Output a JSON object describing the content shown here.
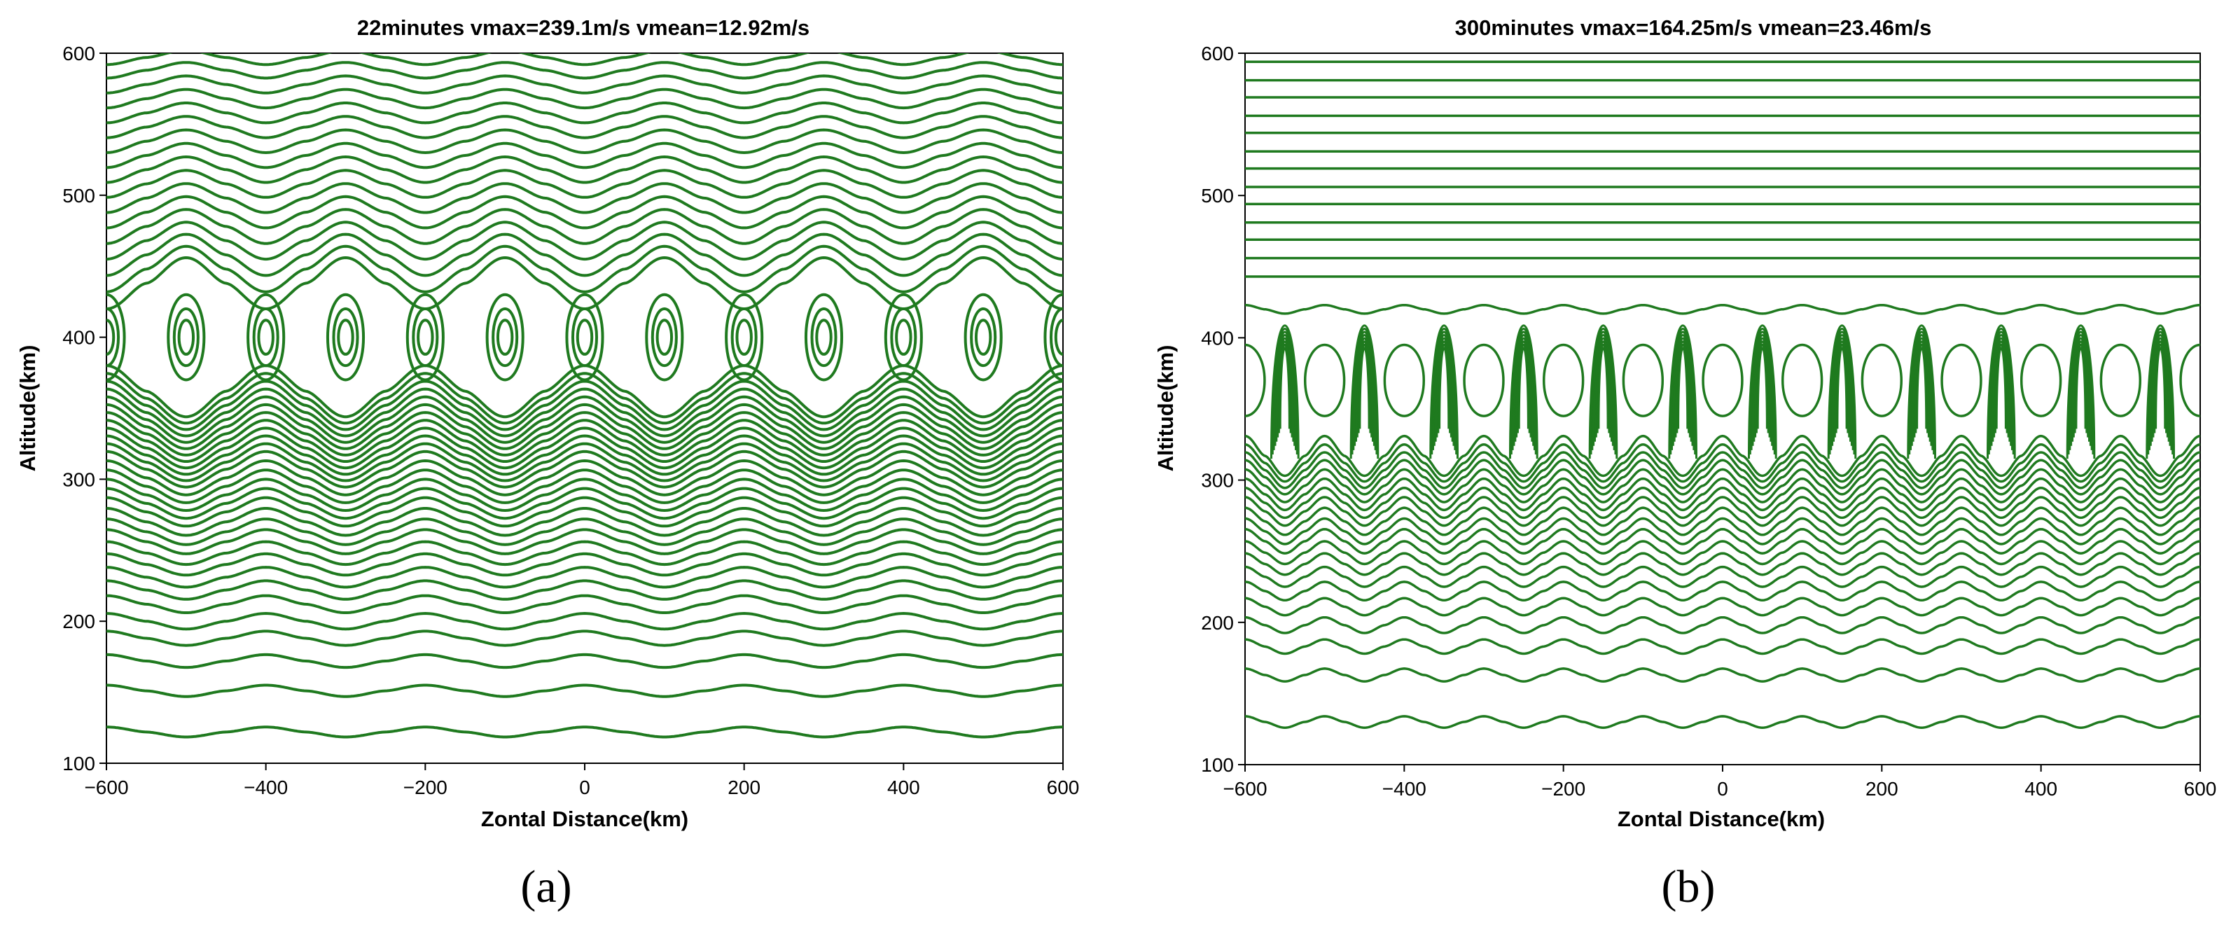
{
  "chart_data": [
    {
      "type": "line",
      "panel_label": "(a)",
      "title": "22minutes  vmax=239.1m/s  vmean=12.92m/s",
      "xlabel": "Zontal Distance(km)",
      "ylabel": "Altitude(km)",
      "xlim": [
        -600,
        600
      ],
      "ylim": [
        100,
        600
      ],
      "x_ticks": [
        -600,
        -400,
        -200,
        0,
        200,
        400,
        600
      ],
      "y_ticks": [
        100,
        200,
        300,
        400,
        500,
        600
      ],
      "x_tick_labels": [
        "−600",
        "−400",
        "−200",
        "0",
        "200",
        "400",
        "600"
      ],
      "y_tick_labels": [
        "100",
        "200",
        "300",
        "400",
        "500",
        "600"
      ],
      "line_color": "#1f7a1f",
      "grid": false,
      "horizontal_wavelength_km": 200,
      "cell_center_altitude_km": 400,
      "cell_center_x_km": [
        -600,
        -500,
        -400,
        -300,
        -200,
        -100,
        0,
        100,
        200,
        300,
        400,
        500,
        600
      ],
      "closed_cell_half_heights_km": [
        30,
        20,
        12
      ],
      "contour_levels_km_below": [
        122,
        151,
        172,
        188,
        200,
        212,
        222,
        231,
        240,
        248,
        256,
        263,
        270,
        277,
        283,
        289,
        295,
        301,
        307,
        312,
        317,
        322,
        327,
        332,
        337,
        342,
        347,
        352,
        357,
        362
      ],
      "contour_levels_km_above": [
        438,
        448,
        458,
        468,
        478,
        488,
        498,
        508,
        518,
        528,
        538,
        548,
        558,
        568,
        578,
        588,
        597
      ],
      "wave_amplitudes_km_below": [
        3.5,
        4,
        4.5,
        5,
        5.5,
        6,
        6.5,
        7,
        7.5,
        8,
        8.5,
        9,
        9.5,
        10,
        10.5,
        11,
        11.5,
        12,
        12.5,
        13,
        13.5,
        14,
        14.5,
        15,
        15.5,
        16,
        16.5,
        17,
        17.5,
        18
      ],
      "wave_amplitudes_km_above": [
        18,
        16,
        14.5,
        13,
        12,
        11,
        10.2,
        9.5,
        9,
        8.5,
        8,
        7.5,
        7,
        6.5,
        6,
        5.5,
        5
      ]
    },
    {
      "type": "line",
      "panel_label": "(b)",
      "title": "300minutes  vmax=164.25m/s  vmean=23.46m/s",
      "xlabel": "Zontal Distance(km)",
      "ylabel": "Altitude(km)",
      "xlim": [
        -600,
        600
      ],
      "ylim": [
        100,
        600
      ],
      "x_ticks": [
        -600,
        -400,
        -200,
        0,
        200,
        400,
        600
      ],
      "y_ticks": [
        100,
        200,
        300,
        400,
        500,
        600
      ],
      "x_tick_labels": [
        "−600",
        "−400",
        "−200",
        "0",
        "200",
        "400",
        "600"
      ],
      "y_tick_labels": [
        "100",
        "200",
        "300",
        "400",
        "500",
        "600"
      ],
      "line_color": "#1f7a1f",
      "grid": false,
      "horizontal_wavelength_km": 100,
      "cell_center_altitude_km": 370,
      "cell_center_x_km": [
        -600,
        -550,
        -500,
        -450,
        -400,
        -350,
        -300,
        -250,
        -200,
        -150,
        -100,
        -50,
        0,
        50,
        100,
        150,
        200,
        250,
        300,
        350,
        400,
        450,
        500,
        550,
        600
      ],
      "cell_half_width_km": 17,
      "open_cell_half_height_km": 25,
      "dense_cell_nested_count": 8,
      "contour_levels_km_below": [
        130,
        163,
        183,
        198,
        211,
        222,
        232,
        241,
        249,
        257,
        264,
        271,
        278,
        284,
        290,
        296,
        302,
        307,
        312,
        317
      ],
      "wave_amplitudes_km_below": [
        4,
        4.5,
        5,
        5.5,
        6,
        6.5,
        7,
        7.5,
        8,
        8.5,
        9,
        9.5,
        10,
        10.5,
        11,
        11.5,
        12,
        12.5,
        13,
        14
      ],
      "flat_levels_km_above": [
        443,
        456,
        469,
        481,
        494,
        506,
        519,
        531,
        544,
        556,
        569,
        581,
        594
      ],
      "wavy_levels_km_above": [
        420
      ],
      "wave_amplitudes_km_above": [
        3
      ]
    }
  ]
}
